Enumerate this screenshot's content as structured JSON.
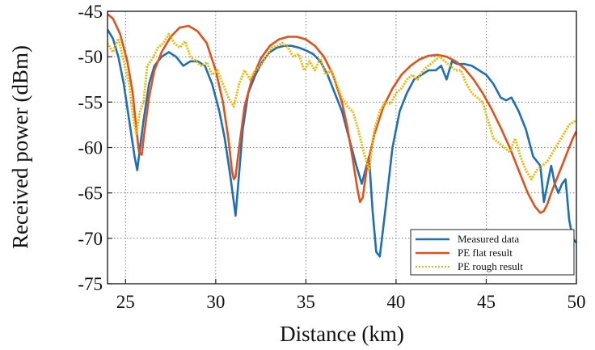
{
  "chart_data": {
    "type": "line",
    "title": "",
    "xlabel": "Distance (km)",
    "ylabel": "Received power (dBm)",
    "xlim": [
      24,
      50
    ],
    "ylim": [
      -75,
      -45
    ],
    "xticks": [
      25,
      30,
      35,
      40,
      45,
      50
    ],
    "yticks": [
      -75,
      -70,
      -65,
      -60,
      -55,
      -50,
      -45
    ],
    "grid": true,
    "legend_position": "bottom-right",
    "series": [
      {
        "name": "Measured data",
        "color": "#1f6fb5",
        "style": "solid",
        "x": [
          24.0,
          24.3,
          24.6,
          24.9,
          25.2,
          25.5,
          25.65,
          25.8,
          26.0,
          26.3,
          26.6,
          27.0,
          27.4,
          27.8,
          28.2,
          28.6,
          29.0,
          29.4,
          29.8,
          30.2,
          30.5,
          30.8,
          31.0,
          31.1,
          31.25,
          31.5,
          31.8,
          32.2,
          32.6,
          33.0,
          33.4,
          33.8,
          34.2,
          34.6,
          35.0,
          35.4,
          35.8,
          36.2,
          36.6,
          37.0,
          37.4,
          37.8,
          38.1,
          38.3,
          38.5,
          38.7,
          38.9,
          39.1,
          39.4,
          39.8,
          40.2,
          40.6,
          41.0,
          41.4,
          41.8,
          42.2,
          42.5,
          42.8,
          43.1,
          43.4,
          43.8,
          44.2,
          44.6,
          45.0,
          45.4,
          45.8,
          46.1,
          46.4,
          46.8,
          47.2,
          47.6,
          48.0,
          48.2,
          48.4,
          48.6,
          48.8,
          49.0,
          49.2,
          49.4,
          49.6,
          49.8,
          50.0
        ],
        "y": [
          -47,
          -48,
          -50,
          -53,
          -57,
          -61,
          -62.5,
          -60,
          -57,
          -53,
          -51,
          -50,
          -49.5,
          -50,
          -51,
          -50.5,
          -50.5,
          -51,
          -53,
          -56,
          -59,
          -63,
          -66,
          -67.5,
          -64,
          -58,
          -54,
          -52,
          -50.5,
          -49.5,
          -49,
          -48.8,
          -48.8,
          -49,
          -49.3,
          -49.7,
          -50.5,
          -52,
          -54,
          -56,
          -59,
          -62,
          -64,
          -62.5,
          -61,
          -67,
          -71.5,
          -72,
          -67,
          -60,
          -56,
          -54,
          -52.5,
          -52,
          -51.5,
          -51.5,
          -51,
          -52.5,
          -50.5,
          -50.8,
          -50.8,
          -51,
          -51.5,
          -52,
          -53,
          -54.5,
          -54.8,
          -54.5,
          -56,
          -58,
          -61,
          -62,
          -66,
          -64,
          -62,
          -64,
          -65,
          -64,
          -63.5,
          -68,
          -70,
          -70.5
        ]
      },
      {
        "name": "PE flat result",
        "color": "#e0521c",
        "style": "solid",
        "x": [
          24.0,
          24.3,
          24.7,
          25.1,
          25.4,
          25.6,
          25.75,
          25.9,
          26.0,
          26.3,
          26.6,
          27.0,
          27.5,
          28.0,
          28.5,
          29.0,
          29.5,
          30.0,
          30.4,
          30.7,
          30.9,
          31.0,
          31.1,
          31.3,
          31.6,
          32.0,
          32.5,
          33.0,
          33.5,
          34.0,
          34.5,
          35.0,
          35.5,
          36.0,
          36.5,
          37.0,
          37.3,
          37.6,
          37.85,
          38.0,
          38.15,
          38.4,
          38.8,
          39.3,
          39.8,
          40.3,
          40.8,
          41.3,
          41.8,
          42.3,
          42.8,
          43.3,
          43.8,
          44.3,
          44.8,
          45.3,
          45.8,
          46.3,
          46.8,
          47.3,
          47.7,
          48.0,
          48.2,
          48.4,
          48.6,
          48.9,
          49.2,
          49.5,
          49.8,
          50.0
        ],
        "y": [
          -45.3,
          -45.8,
          -47.5,
          -50.5,
          -54,
          -58,
          -60.5,
          -60.8,
          -59,
          -54.5,
          -51.5,
          -49.5,
          -47.8,
          -46.8,
          -46.6,
          -47.2,
          -48.5,
          -51.5,
          -55,
          -59,
          -62.5,
          -63.5,
          -63.2,
          -60,
          -55.5,
          -52.5,
          -50.2,
          -48.8,
          -48.1,
          -47.8,
          -47.8,
          -48.1,
          -48.8,
          -50,
          -52,
          -55,
          -57.8,
          -61.3,
          -64.5,
          -66,
          -65.5,
          -62,
          -58.5,
          -55.5,
          -53.5,
          -52,
          -51,
          -50.3,
          -49.9,
          -49.8,
          -50,
          -50.5,
          -51.3,
          -52.5,
          -54,
          -55.8,
          -57.8,
          -60,
          -62.5,
          -65,
          -66.5,
          -67.2,
          -67,
          -66.2,
          -65,
          -63.5,
          -62,
          -60.5,
          -59,
          -58.2
        ]
      },
      {
        "name": "PE rough result",
        "color": "#f2b705",
        "style": "dotted",
        "x": [
          24.0,
          24.3,
          24.6,
          24.9,
          25.2,
          25.4,
          25.6,
          25.8,
          26.0,
          26.2,
          26.5,
          26.8,
          27.1,
          27.4,
          27.7,
          28.0,
          28.3,
          28.6,
          28.9,
          29.2,
          29.5,
          29.8,
          30.1,
          30.4,
          30.7,
          31.0,
          31.3,
          31.6,
          31.9,
          32.2,
          32.5,
          32.8,
          33.1,
          33.4,
          33.7,
          34.0,
          34.3,
          34.6,
          34.9,
          35.2,
          35.5,
          35.8,
          36.1,
          36.4,
          36.7,
          37.0,
          37.3,
          37.6,
          37.9,
          38.2,
          38.5,
          38.8,
          39.1,
          39.4,
          39.7,
          40.0,
          40.3,
          40.6,
          40.9,
          41.2,
          41.5,
          41.8,
          42.1,
          42.4,
          42.7,
          43.0,
          43.3,
          43.6,
          43.9,
          44.2,
          44.5,
          44.8,
          45.1,
          45.4,
          45.7,
          46.0,
          46.3,
          46.6,
          46.9,
          47.2,
          47.5,
          47.8,
          48.1,
          48.4,
          48.7,
          49.0,
          49.3,
          49.6,
          50.0
        ],
        "y": [
          -48.5,
          -49.5,
          -48,
          -50.5,
          -53,
          -56.5,
          -58.5,
          -56,
          -55,
          -51,
          -50.2,
          -49,
          -48.5,
          -47.5,
          -48.5,
          -49,
          -48.3,
          -50,
          -50.5,
          -51,
          -50.6,
          -52,
          -51.5,
          -53,
          -54.5,
          -55.5,
          -53,
          -51.5,
          -52.5,
          -51.5,
          -51,
          -50,
          -49,
          -48.8,
          -48.5,
          -49,
          -50,
          -49.7,
          -51.5,
          -50.5,
          -51.5,
          -50.2,
          -52,
          -51.5,
          -53,
          -54.5,
          -55.5,
          -56,
          -58,
          -60.5,
          -62.5,
          -58,
          -56,
          -55,
          -55.2,
          -54,
          -53.5,
          -52.5,
          -52,
          -52.5,
          -51.5,
          -51,
          -50.5,
          -50,
          -50.5,
          -51,
          -51.5,
          -51.5,
          -53,
          -54,
          -54.5,
          -55,
          -57,
          -59,
          -59.5,
          -60,
          -60.5,
          -59,
          -61,
          -62.5,
          -63.5,
          -62.5,
          -62,
          -61.5,
          -60.5,
          -59.5,
          -58.5,
          -57.5,
          -57
        ]
      }
    ]
  }
}
